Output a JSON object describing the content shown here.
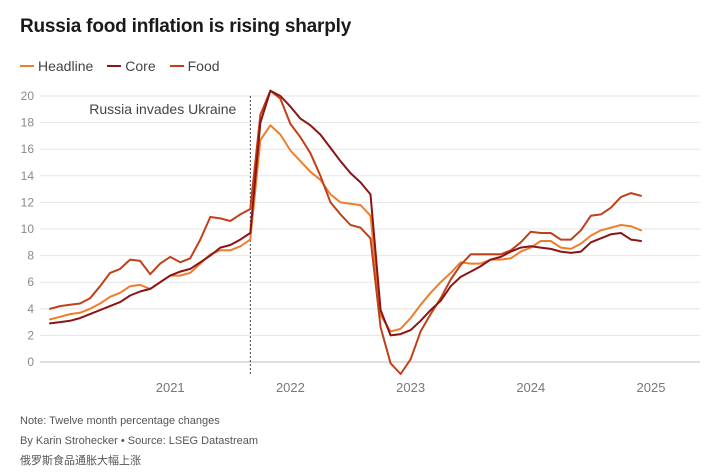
{
  "chart_data": {
    "type": "line",
    "title": "Russia food inflation is rising sharply",
    "ylim": [
      -1,
      20.5
    ],
    "yticks": [
      0,
      2,
      4,
      6,
      8,
      10,
      12,
      14,
      16,
      18,
      20
    ],
    "xrange": [
      "2020-06",
      "2025-06"
    ],
    "xtick_labels": [
      {
        "label": "2021",
        "date": "2021-06"
      },
      {
        "label": "2022",
        "date": "2022-06"
      },
      {
        "label": "2023",
        "date": "2023-06"
      },
      {
        "label": "2024",
        "date": "2024-06"
      },
      {
        "label": "2025",
        "date": "2025-06"
      }
    ],
    "grid": true,
    "legend_position": "top-left",
    "annotation": {
      "text": "Russia invades  Ukraine",
      "date": "2022-02"
    },
    "months": [
      "2020-06",
      "2020-07",
      "2020-08",
      "2020-09",
      "2020-10",
      "2020-11",
      "2020-12",
      "2021-01",
      "2021-02",
      "2021-03",
      "2021-04",
      "2021-05",
      "2021-06",
      "2021-07",
      "2021-08",
      "2021-09",
      "2021-10",
      "2021-11",
      "2021-12",
      "2022-01",
      "2022-02",
      "2022-03",
      "2022-04",
      "2022-05",
      "2022-06",
      "2022-07",
      "2022-08",
      "2022-09",
      "2022-10",
      "2022-11",
      "2022-12",
      "2023-01",
      "2023-02",
      "2023-03",
      "2023-04",
      "2023-05",
      "2023-06",
      "2023-07",
      "2023-08",
      "2023-09",
      "2023-10",
      "2023-11",
      "2023-12",
      "2024-01",
      "2024-02",
      "2024-03",
      "2024-04",
      "2024-05",
      "2024-06",
      "2024-07",
      "2024-08",
      "2024-09",
      "2024-10",
      "2024-11",
      "2024-12",
      "2025-01",
      "2025-02",
      "2025-03",
      "2025-04",
      "2025-05"
    ],
    "series": [
      {
        "name": "Headline",
        "color": "#ef7d2a",
        "values": [
          3.2,
          3.4,
          3.6,
          3.7,
          4.0,
          4.4,
          4.9,
          5.2,
          5.7,
          5.8,
          5.5,
          6.0,
          6.5,
          6.5,
          6.7,
          7.4,
          8.1,
          8.4,
          8.4,
          8.7,
          9.2,
          16.7,
          17.8,
          17.1,
          15.9,
          15.1,
          14.3,
          13.7,
          12.6,
          12.0,
          11.9,
          11.8,
          11.0,
          3.5,
          2.3,
          2.5,
          3.3,
          4.3,
          5.2,
          6.0,
          6.7,
          7.5,
          7.4,
          7.4,
          7.7,
          7.7,
          7.8,
          8.3,
          8.6,
          9.1,
          9.1,
          8.6,
          8.5,
          8.9,
          9.5,
          9.9,
          10.1,
          10.3,
          10.2,
          9.9
        ]
      },
      {
        "name": "Core",
        "color": "#8b1414",
        "values": [
          2.9,
          3.0,
          3.1,
          3.3,
          3.6,
          3.9,
          4.2,
          4.5,
          5.0,
          5.3,
          5.5,
          6.0,
          6.5,
          6.8,
          7.0,
          7.5,
          8.0,
          8.6,
          8.8,
          9.2,
          9.7,
          18.0,
          20.4,
          20.0,
          19.2,
          18.3,
          17.8,
          17.1,
          16.1,
          15.1,
          14.2,
          13.5,
          12.6,
          3.9,
          2.0,
          2.1,
          2.4,
          3.1,
          3.9,
          4.6,
          5.7,
          6.4,
          6.8,
          7.2,
          7.7,
          7.9,
          8.3,
          8.6,
          8.7,
          8.6,
          8.5,
          8.3,
          8.2,
          8.3,
          9.0,
          9.3,
          9.6,
          9.7,
          9.2,
          9.1
        ]
      },
      {
        "name": "Food",
        "color": "#c0401a",
        "values": [
          4.0,
          4.2,
          4.3,
          4.4,
          4.8,
          5.7,
          6.7,
          7.0,
          7.7,
          7.6,
          6.6,
          7.4,
          7.9,
          7.5,
          7.8,
          9.2,
          10.9,
          10.8,
          10.6,
          11.1,
          11.5,
          18.6,
          20.4,
          19.8,
          17.9,
          16.9,
          15.7,
          14.0,
          12.0,
          11.1,
          10.3,
          10.1,
          9.3,
          2.6,
          -0.1,
          -0.9,
          0.2,
          2.3,
          3.6,
          4.8,
          6.2,
          7.3,
          8.1,
          8.1,
          8.1,
          8.1,
          8.4,
          9.0,
          9.8,
          9.7,
          9.7,
          9.2,
          9.2,
          9.9,
          11.0,
          11.1,
          11.6,
          12.4,
          12.7,
          12.5
        ]
      }
    ]
  },
  "footer": {
    "note": "Note: Twelve month percentage changes",
    "byline": "By Karin Strohecker • Source: LSEG Datastream",
    "chinese": "俄罗斯食品通胀大幅上涨"
  }
}
